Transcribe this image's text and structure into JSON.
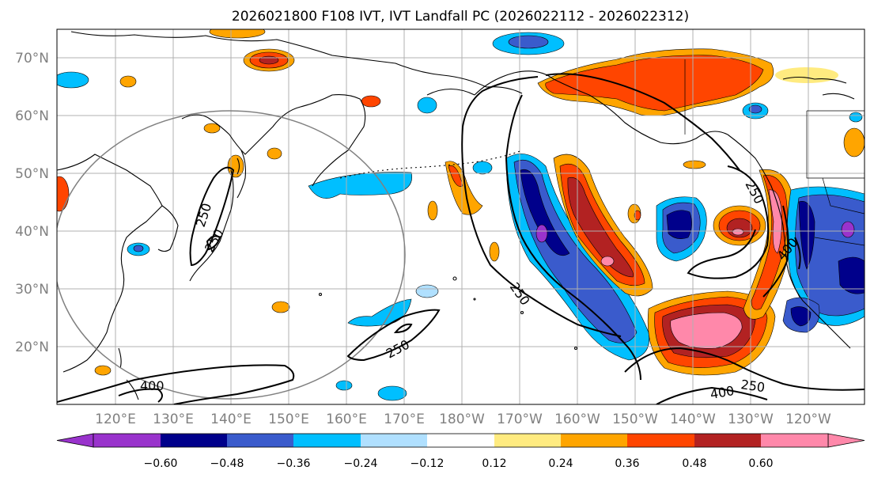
{
  "title": "2026021800 F108 IVT, IVT Landfall PC (2026022112 - 2026022312)",
  "lat_labels": [
    "70°N",
    "60°N",
    "50°N",
    "40°N",
    "30°N",
    "20°N"
  ],
  "lon_labels": [
    "120°E",
    "130°E",
    "140°E",
    "150°E",
    "160°E",
    "170°E",
    "180°W",
    "170°W",
    "160°W",
    "150°W",
    "140°W",
    "130°W",
    "120°W"
  ],
  "colorbar": {
    "ticks": [
      "−0.60",
      "−0.48",
      "−0.36",
      "−0.24",
      "−0.12",
      "0.12",
      "0.24",
      "0.36",
      "0.48",
      "0.60"
    ],
    "colors": [
      "#9933cc",
      "#00008b",
      "#3a5bcc",
      "#00bfff",
      "#b0e0ff",
      "#ffffff",
      "#ffeb80",
      "#ffa500",
      "#ff4500",
      "#b22222",
      "#ff88aa"
    ]
  },
  "contour_labels": [
    "250",
    "250",
    "250",
    "250",
    "250",
    "250",
    "400",
    "400",
    "400"
  ]
}
